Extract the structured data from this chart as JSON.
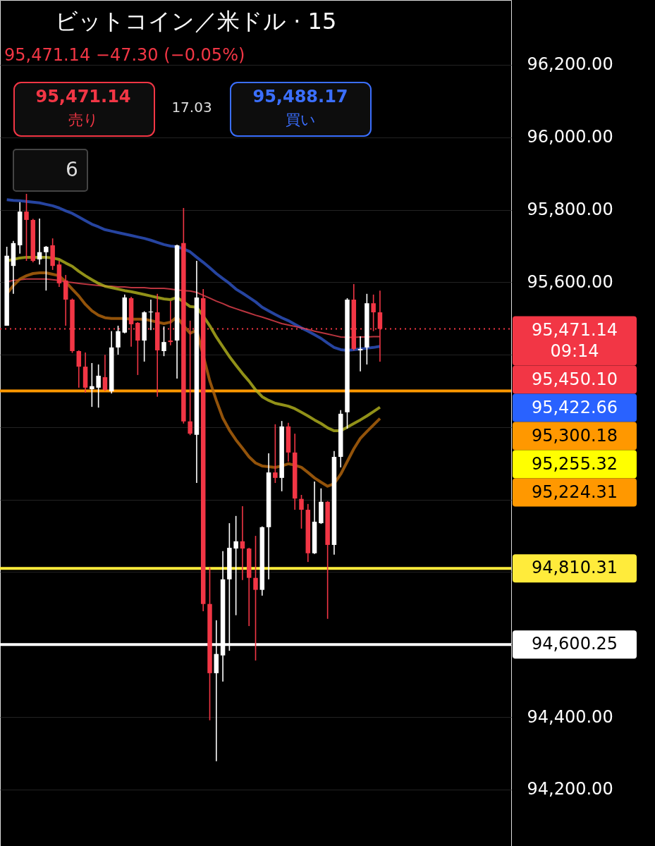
{
  "chart_data": {
    "type": "candlestick",
    "title": "ビットコイン／米ドル · 15",
    "subtitle": "95,471.14  −47.30 (−0.05%)",
    "categories": [
      null,
      null,
      null,
      null,
      null,
      null,
      null,
      null,
      null,
      null,
      null,
      null,
      null,
      null,
      null,
      null,
      null,
      null,
      null,
      null,
      null,
      null,
      null,
      null,
      null,
      null,
      null,
      null,
      null,
      null,
      null,
      null,
      null,
      null,
      null,
      null,
      null,
      null,
      null,
      null,
      null,
      null,
      null,
      null,
      null,
      null,
      null,
      null,
      null,
      null,
      null,
      null,
      null,
      null,
      null,
      null,
      null,
      null
    ],
    "ohlc": [
      [
        95480,
        95698,
        95480,
        95673
      ],
      [
        95645,
        95714,
        95568,
        95708
      ],
      [
        95702,
        95821,
        95679,
        95795
      ],
      [
        95795,
        95844,
        95659,
        95772
      ],
      [
        95772,
        95775,
        95655,
        95659
      ],
      [
        95663,
        95776,
        95649,
        95683
      ],
      [
        95683,
        95700,
        95577,
        95698
      ],
      [
        95702,
        95721,
        95634,
        95645
      ],
      [
        95649,
        95659,
        95587,
        95597
      ],
      [
        95605,
        95620,
        95480,
        95552
      ],
      [
        95552,
        95555,
        95405,
        95410
      ],
      [
        95410,
        95412,
        95309,
        95367
      ],
      [
        95367,
        95406,
        95295,
        95309
      ],
      [
        95305,
        95377,
        95256,
        95313
      ],
      [
        95309,
        95373,
        95254,
        95342
      ],
      [
        95338,
        95400,
        95300,
        95303
      ],
      [
        95299,
        95465,
        95293,
        95420
      ],
      [
        95420,
        95480,
        95400,
        95465
      ],
      [
        95461,
        95566,
        95459,
        95558
      ],
      [
        95556,
        95560,
        95422,
        95484
      ],
      [
        95488,
        95490,
        95344,
        95439
      ],
      [
        95439,
        95520,
        95381,
        95517
      ],
      [
        95517,
        95552,
        95468,
        95519
      ],
      [
        95517,
        95568,
        95284,
        95412
      ],
      [
        95410,
        95478,
        95396,
        95435
      ],
      [
        95439,
        95548,
        95426,
        95435
      ],
      [
        95439,
        95704,
        95334,
        95702
      ],
      [
        95708,
        95805,
        95210,
        95216
      ],
      [
        95216,
        95494,
        95178,
        95182
      ],
      [
        95179,
        95659,
        95046,
        95558
      ],
      [
        95556,
        95581,
        94692,
        94712
      ],
      [
        94712,
        94813,
        94391,
        94521
      ],
      [
        94521,
        94667,
        94278,
        94574
      ],
      [
        94570,
        94858,
        94498,
        94780
      ],
      [
        94780,
        94935,
        94583,
        94867
      ],
      [
        94865,
        94955,
        94681,
        94885
      ],
      [
        94885,
        94982,
        94778,
        94865
      ],
      [
        94865,
        94867,
        94651,
        94784
      ],
      [
        94784,
        94900,
        94556,
        94751
      ],
      [
        94751,
        94926,
        94735,
        94924
      ],
      [
        94924,
        95128,
        94780,
        95075
      ],
      [
        95075,
        95208,
        95046,
        95060
      ],
      [
        95060,
        95217,
        95023,
        95202
      ],
      [
        95202,
        95212,
        95105,
        95130
      ],
      [
        95130,
        95182,
        94972,
        95003
      ],
      [
        95002,
        95013,
        94920,
        94972
      ],
      [
        94972,
        94988,
        94828,
        94852
      ],
      [
        94852,
        95050,
        94850,
        94939
      ],
      [
        94935,
        95031,
        94933,
        94994
      ],
      [
        94994,
        94996,
        94671,
        94875
      ],
      [
        94875,
        95134,
        94848,
        95118
      ],
      [
        95118,
        95247,
        95089,
        95237
      ],
      [
        95241,
        95556,
        95196,
        95552
      ],
      [
        95552,
        95595,
        95412,
        95416
      ],
      [
        95412,
        95451,
        95354,
        95416
      ],
      [
        95420,
        95568,
        95373,
        95542
      ],
      [
        95542,
        95566,
        95465,
        95517
      ],
      [
        95517,
        95577,
        95381,
        95471.14
      ]
    ],
    "series": [
      {
        "type": "line",
        "color": "#2f55c8",
        "values": [
          95828,
          95826,
          95825,
          95823,
          95821,
          95819,
          95815,
          95811,
          95805,
          95797,
          95790,
          95780,
          95770,
          95760,
          95753,
          95745,
          95741,
          95737,
          95733,
          95729,
          95725,
          95721,
          95716,
          95710,
          95704,
          95700,
          95698,
          95692,
          95684,
          95669,
          95655,
          95640,
          95624,
          95610,
          95597,
          95581,
          95570,
          95558,
          95546,
          95531,
          95521,
          95511,
          95502,
          95494,
          95484,
          95474,
          95465,
          95455,
          95445,
          95432,
          95420,
          95414,
          95412,
          95414,
          95416,
          95418,
          95420,
          95423
        ]
      },
      {
        "type": "line",
        "color": "#e8424f",
        "values": [
          95601,
          95605,
          95607,
          95609,
          95609,
          95609,
          95609,
          95607,
          95605,
          95601,
          95599,
          95597,
          95595,
          95593,
          95591,
          95589,
          95589,
          95587,
          95587,
          95585,
          95585,
          95585,
          95583,
          95583,
          95583,
          95581,
          95579,
          95577,
          95576,
          95572,
          95564,
          95556,
          95548,
          95541,
          95533,
          95527,
          95521,
          95515,
          95509,
          95504,
          95498,
          95492,
          95486,
          95482,
          95478,
          95474,
          95470,
          95465,
          95461,
          95457,
          95453,
          95449,
          95448,
          95448,
          95449,
          95449,
          95450,
          95450
        ]
      },
      {
        "type": "line",
        "color": "#b5b51e",
        "values": [
          95659,
          95663,
          95667,
          95669,
          95669,
          95669,
          95669,
          95667,
          95663,
          95653,
          95644,
          95630,
          95618,
          95607,
          95597,
          95589,
          95585,
          95581,
          95577,
          95574,
          95570,
          95566,
          95562,
          95558,
          95554,
          95552,
          95558,
          95546,
          95533,
          95531,
          95507,
          95480,
          95449,
          95422,
          95395,
          95371,
          95348,
          95327,
          95303,
          95284,
          95274,
          95266,
          95262,
          95258,
          95251,
          95241,
          95231,
          95220,
          95210,
          95198,
          95190,
          95190,
          95200,
          95210,
          95220,
          95231,
          95243,
          95255
        ]
      },
      {
        "type": "line",
        "color": "#b8680c",
        "values": [
          95568,
          95591,
          95609,
          95618,
          95624,
          95626,
          95626,
          95622,
          95618,
          95601,
          95581,
          95562,
          95539,
          95521,
          95509,
          95502,
          95500,
          95500,
          95500,
          95498,
          95498,
          95498,
          95494,
          95490,
          95486,
          95490,
          95504,
          95480,
          95459,
          95468,
          null,
          95328,
          95274,
          95225,
          95192,
          95165,
          95142,
          95118,
          95101,
          95093,
          95091,
          95089,
          95093,
          95099,
          95095,
          95089,
          95075,
          95060,
          95048,
          95037,
          95044,
          95070,
          95105,
          95140,
          95169,
          95188,
          95206,
          95224
        ]
      }
    ],
    "ref_lines": [
      {
        "axis": "y",
        "value": 95471.14,
        "label": "95,471.14",
        "color": "#f23645",
        "line_style": "dotted"
      },
      {
        "axis": "y",
        "value": 95300.18,
        "label": "95,300.18",
        "color": "#ff9800"
      },
      {
        "axis": "y",
        "value": 94810.31,
        "label": "94,810.31",
        "color": "#ffeb3b"
      },
      {
        "axis": "y",
        "value": 94600.25,
        "label": "94,600.25",
        "color": "#ffffff"
      }
    ],
    "annotations": [
      "95,471.14",
      "売り",
      "17.03",
      "95,488.17",
      "買い",
      "6",
      "09:14",
      "95,450.10",
      "95,422.66",
      "95,255.32",
      "95,224.31"
    ],
    "ylim": [
      94044,
      96379
    ],
    "yticks": [
      {
        "value": 94200,
        "label": "94,200.00"
      },
      {
        "value": 94400,
        "label": "94,400.00"
      },
      {
        "value": 94600,
        "label": null
      },
      {
        "value": 94800,
        "label": null
      },
      {
        "value": 95000,
        "label": null
      },
      {
        "value": 95200,
        "label": null
      },
      {
        "value": 95400,
        "label": null
      },
      {
        "value": 95600,
        "label": "95,600.00"
      },
      {
        "value": 95800,
        "label": "95,800.00"
      },
      {
        "value": 96000,
        "label": "96,000.00"
      },
      {
        "value": 96200,
        "label": "96,200.00"
      }
    ],
    "grid": "y",
    "tick_labels": "y"
  }
}
